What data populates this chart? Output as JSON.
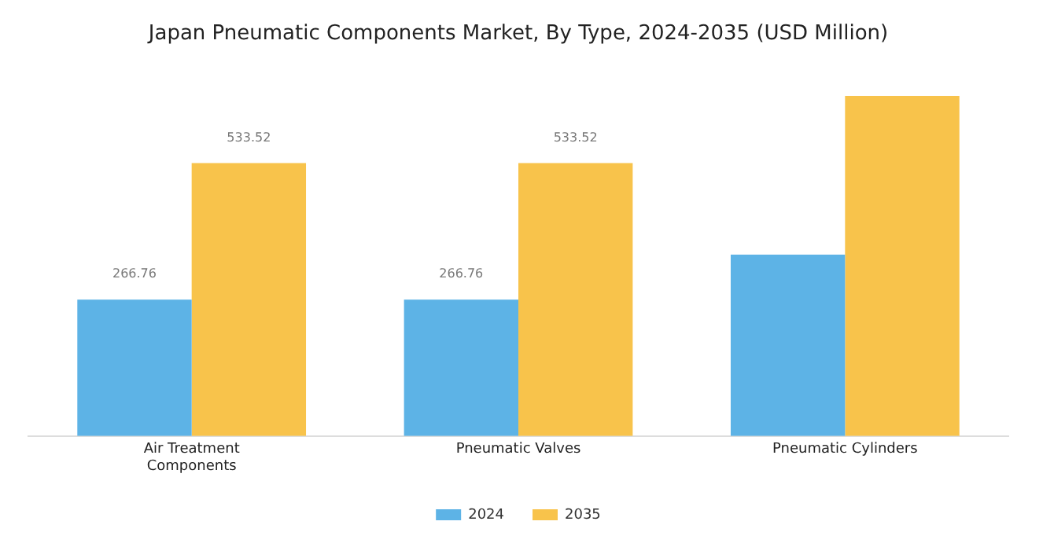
{
  "chart_data": {
    "type": "bar",
    "title": "Japan Pneumatic Components Market, By Type, 2024-2035 (USD Million)",
    "categories": [
      "Air Treatment\nComponents",
      "Pneumatic Valves",
      "Pneumatic Cylinders"
    ],
    "series": [
      {
        "name": "2024",
        "color": "#5db3e6",
        "values": [
          266.76,
          266.76,
          354.5
        ],
        "value_labels": [
          "266.76",
          "266.76",
          null
        ]
      },
      {
        "name": "2035",
        "color": "#f8c34b",
        "values": [
          533.52,
          533.52,
          665
        ],
        "value_labels": [
          "533.52",
          "533.52",
          null
        ]
      }
    ],
    "legend": "bottom",
    "grid": false
  }
}
